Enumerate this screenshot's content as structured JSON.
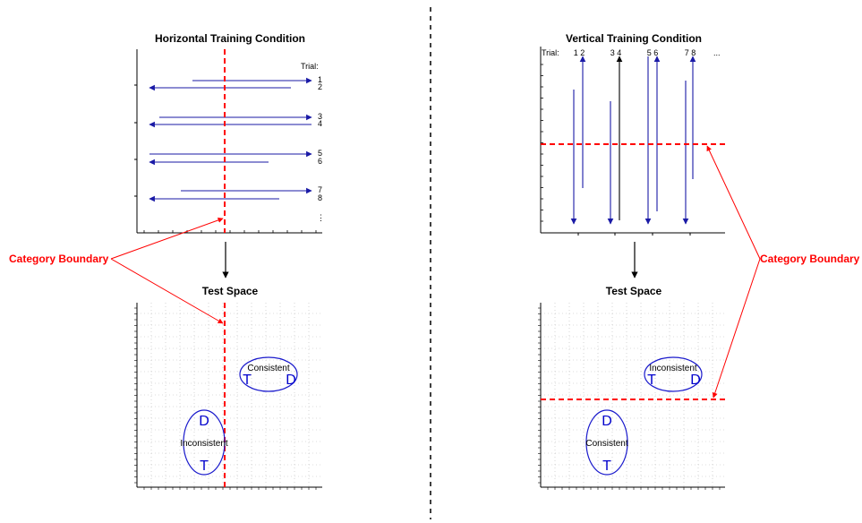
{
  "colors": {
    "arrow": "#1a1aa6",
    "boundary": "#ff0000",
    "grid": "#bbbbbb",
    "ellipse": "#1a1acc"
  },
  "left": {
    "title": "Horizontal Training Condition",
    "trial_label": "Trial:",
    "trial_numbers": [
      "1",
      "2",
      "3",
      "4",
      "5",
      "6",
      "7",
      "8"
    ],
    "ellipsis": "⋮",
    "test_title": "Test Space",
    "clusters": {
      "consistent": {
        "label": "Consistent",
        "t": "T",
        "d": "D"
      },
      "inconsistent": {
        "label": "Inconsistent",
        "t": "T",
        "d": "D"
      }
    }
  },
  "right": {
    "title": "Vertical Training Condition",
    "trial_label": "Trial:",
    "trial_numbers": [
      "1 2",
      "3 4",
      "5 6",
      "7 8"
    ],
    "ellipsis": "...",
    "test_title": "Test Space",
    "clusters": {
      "inconsistent": {
        "label": "Inconsistent",
        "t": "T",
        "d": "D"
      },
      "consistent": {
        "label": "Consistent",
        "t": "T",
        "d": "D"
      }
    }
  },
  "boundary_label_left": "Category Boundary",
  "boundary_label_right": "Category Boundary"
}
